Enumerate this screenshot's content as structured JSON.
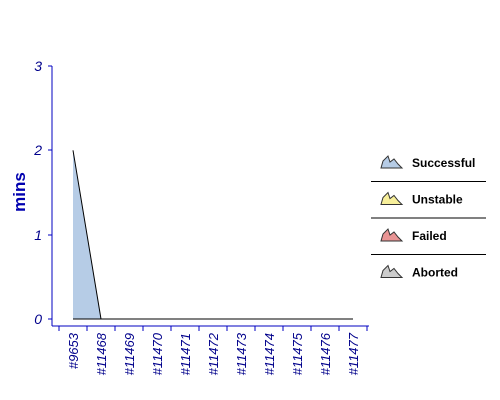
{
  "chart_data": {
    "type": "area",
    "ylabel": "mins",
    "xlabel": "",
    "title": "",
    "ylim": [
      0,
      3
    ],
    "yticks": [
      "0",
      "1",
      "2",
      "3"
    ],
    "categories": [
      "#9653",
      "#11468",
      "#11469",
      "#11470",
      "#11471",
      "#11472",
      "#11473",
      "#11474",
      "#11475",
      "#11476",
      "#11477"
    ],
    "series": [
      {
        "name": "Successful",
        "color": "#b6cce6",
        "values": [
          2,
          0,
          0,
          0,
          0,
          0,
          0,
          0,
          0,
          0,
          0
        ]
      },
      {
        "name": "Unstable",
        "color": "#f7ef9a",
        "values": [
          0,
          0,
          0,
          0,
          0,
          0,
          0,
          0,
          0,
          0,
          0
        ]
      },
      {
        "name": "Failed",
        "color": "#e99494",
        "values": [
          0,
          0,
          0,
          0,
          0,
          0,
          0,
          0,
          0,
          0,
          0
        ]
      },
      {
        "name": "Aborted",
        "color": "#cccccc",
        "values": [
          0,
          0,
          0,
          0,
          0,
          0,
          0,
          0,
          0,
          0,
          0
        ]
      }
    ],
    "legend_position": "right",
    "grid": false,
    "axis_color": "#0000c0",
    "text_color": "#00008b",
    "ylabel_color": "#0000b0"
  }
}
